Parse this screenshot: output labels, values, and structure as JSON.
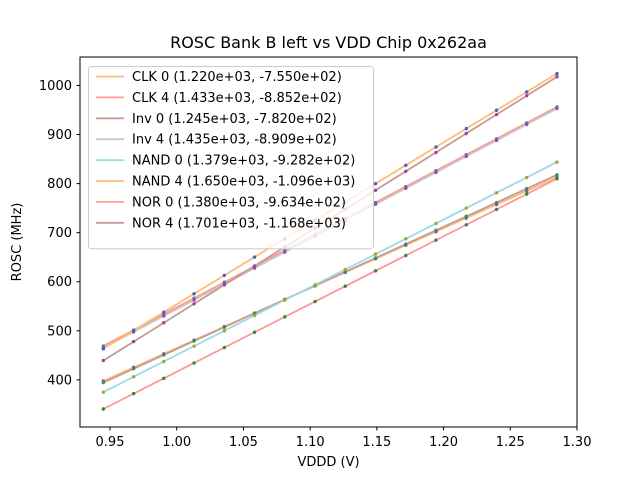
{
  "figure": {
    "title": "ROSC Bank B left vs VDD Chip 0x262aa",
    "x_axis_label": "VDDD (V)",
    "y_axis_label": "ROSC (MHz)"
  },
  "colors": {
    "background": "#ffffff",
    "spine": "#000000",
    "legend_border": "#cccccc",
    "legend_fill_rgba": "rgba(255,255,255,0.8)"
  },
  "chart_data": {
    "type": "scatter",
    "title": "ROSC Bank B left vs VDD Chip 0x262aa",
    "xlabel": "VDDD (V)",
    "ylabel": "ROSC (MHz)",
    "xlim": [
      0.9275,
      1.3
    ],
    "ylim": [
      304,
      1058
    ],
    "grid": false,
    "legend_position": "upper left",
    "x_ticks": {
      "values": [
        0.95,
        1.0,
        1.05,
        1.1,
        1.15,
        1.2,
        1.25,
        1.3
      ],
      "labels": [
        "0.95",
        "1.00",
        "1.05",
        "1.10",
        "1.15",
        "1.20",
        "1.25",
        "1.30"
      ]
    },
    "y_ticks": {
      "values": [
        400,
        500,
        600,
        700,
        800,
        900,
        1000
      ],
      "labels": [
        "400",
        "500",
        "600",
        "700",
        "800",
        "900",
        "1000"
      ]
    },
    "x": [
      0.945,
      0.9677,
      0.9903,
      1.013,
      1.0357,
      1.0583,
      1.081,
      1.1037,
      1.1263,
      1.149,
      1.1717,
      1.1943,
      1.217,
      1.2397,
      1.2623,
      1.285
    ],
    "series": [
      {
        "name": "CLK 0",
        "label": "CLK 0 (1.220e+03, -7.550e+02)",
        "slope": 1220.0,
        "intercept": -755.0,
        "line_color": "#ffbb78",
        "marker_color": "#7e57b0",
        "y": [
          397.9,
          425.6,
          453.2,
          480.9,
          508.6,
          536.1,
          563.8,
          591.5,
          619.1,
          646.8,
          674.5,
          702.0,
          729.7,
          757.4,
          785.0,
          812.7
        ]
      },
      {
        "name": "CLK 4",
        "label": "CLK 4 (1.433e+03, -8.852e+02)",
        "slope": 1433.0,
        "intercept": -885.2,
        "line_color": "#ff9896",
        "marker_color": "#4e79b8",
        "y": [
          469.0,
          501.5,
          533.9,
          566.4,
          599.0,
          631.3,
          663.9,
          696.4,
          728.8,
          761.3,
          793.8,
          826.2,
          858.8,
          891.3,
          923.7,
          956.2
        ]
      },
      {
        "name": "Inv 0",
        "label": "Inv 0 (1.245e+03, -7.820e+02)",
        "slope": 1245.0,
        "intercept": -782.0,
        "line_color": "#c49c94",
        "marker_color": "#3e8e5a",
        "y": [
          394.5,
          422.8,
          450.9,
          479.2,
          507.4,
          535.6,
          563.8,
          592.1,
          620.2,
          648.5,
          676.8,
          704.9,
          733.2,
          761.4,
          789.6,
          817.8
        ]
      },
      {
        "name": "Inv 4",
        "label": "Inv 4 (1.435e+03, -8.909e+02)",
        "slope": 1435.0,
        "intercept": -890.9,
        "line_color": "#c7c7c7",
        "marker_color": "#9350a8",
        "y": [
          465.2,
          497.7,
          530.2,
          562.8,
          595.3,
          627.8,
          660.3,
          692.9,
          725.3,
          757.9,
          790.5,
          822.9,
          855.5,
          888.1,
          920.5,
          953.1
        ]
      },
      {
        "name": "NAND 0",
        "label": "NAND 0 (1.379e+03, -9.282e+02)",
        "slope": 1379.0,
        "intercept": -928.2,
        "line_color": "#9edae5",
        "marker_color": "#a0a832",
        "y": [
          375.0,
          406.3,
          437.4,
          468.7,
          500.0,
          531.2,
          562.5,
          593.8,
          625.0,
          656.3,
          687.6,
          718.7,
          750.0,
          781.3,
          812.5,
          843.8
        ]
      },
      {
        "name": "NAND 4",
        "label": "NAND 4 (1.650e+03, -1.096e+03)",
        "slope": 1650.0,
        "intercept": -1096.0,
        "line_color": "#ffbb78",
        "marker_color": "#3e68b0",
        "y": [
          463.3,
          500.7,
          538.0,
          575.5,
          612.9,
          650.2,
          687.7,
          725.1,
          762.4,
          799.9,
          837.3,
          874.6,
          912.1,
          949.5,
          986.8,
          1024.3
        ]
      },
      {
        "name": "NOR 0",
        "label": "NOR 0 (1.380e+03, -9.634e+02)",
        "slope": 1380.0,
        "intercept": -963.4,
        "line_color": "#ff9896",
        "marker_color": "#2e8b3a",
        "y": [
          340.7,
          372.0,
          403.2,
          434.5,
          465.9,
          497.1,
          528.4,
          559.7,
          590.9,
          622.2,
          653.5,
          684.7,
          716.1,
          747.4,
          778.6,
          809.9
        ]
      },
      {
        "name": "NOR 4",
        "label": "NOR 4 (1.701e+03, -1.168e+03)",
        "slope": 1701.0,
        "intercept": -1168.0,
        "line_color": "#c49c94",
        "marker_color": "#a640a0",
        "y": [
          439.4,
          478.1,
          516.5,
          555.1,
          593.7,
          632.2,
          670.8,
          709.4,
          747.8,
          786.4,
          825.1,
          863.5,
          902.1,
          940.7,
          979.2,
          1017.8
        ]
      }
    ]
  }
}
